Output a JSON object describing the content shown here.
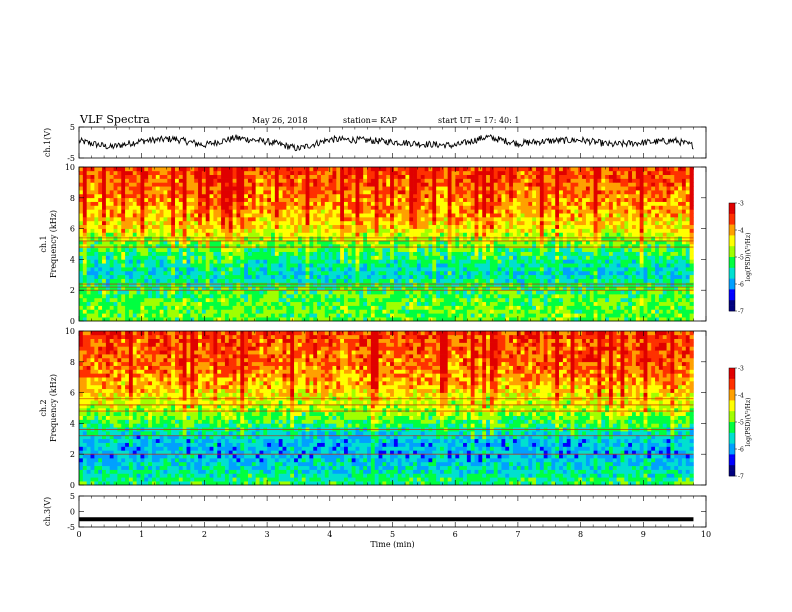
{
  "header": {
    "title": "VLF Spectra",
    "date": "May 26, 2018",
    "station": "station= KAP",
    "start_ut": "start  UT =   17: 40: 1"
  },
  "colors": {
    "scale": [
      "#000080",
      "#0000ff",
      "#00a0ff",
      "#00e0d0",
      "#00ff40",
      "#a0ff00",
      "#ffff00",
      "#ffa000",
      "#ff3000",
      "#e00000"
    ]
  },
  "chart_data": [
    {
      "type": "line",
      "title": "",
      "ylabel": "ch.1(V)",
      "xlabel": "",
      "xlim": [
        0,
        10
      ],
      "ylim": [
        -5,
        5
      ],
      "yticks": [
        "5",
        "-5"
      ],
      "x": [
        0,
        0.5,
        1,
        1.5,
        2,
        2.5,
        3,
        3.5,
        4,
        4.5,
        5,
        5.5,
        6,
        6.5,
        7,
        7.5,
        8,
        8.5,
        9,
        9.5,
        9.8
      ],
      "values": [
        0.5,
        -1.5,
        0.5,
        1.2,
        -0.8,
        1.5,
        0.3,
        -2.0,
        1.0,
        0.8,
        0.2,
        -0.5,
        -1.0,
        1.8,
        -0.3,
        0.5,
        0.8,
        -0.7,
        0.0,
        0.6,
        -1.0
      ],
      "grid": false
    },
    {
      "type": "heatmap",
      "title": "",
      "ylabel": "ch.1 Frequency (kHz)",
      "xlabel": "",
      "xlim": [
        0,
        10
      ],
      "ylim": [
        0,
        10
      ],
      "yticks": [
        "0",
        "2",
        "4",
        "6",
        "8",
        "10"
      ],
      "colorbar": {
        "label": "log(PSD)(V²/Hz)",
        "range": [
          -7,
          -3
        ],
        "ticks": [
          "-3",
          "-4",
          "-5",
          "-6",
          "-7"
        ]
      },
      "bands_khz": [
        2.0,
        2.2,
        2.4,
        4.8,
        5.2,
        5.4
      ],
      "profile_khz": [
        0,
        1,
        2,
        3,
        4,
        5,
        6,
        7,
        8,
        9,
        10
      ],
      "profile_log_psd": [
        -5.0,
        -5.0,
        -5.2,
        -5.7,
        -5.4,
        -5.0,
        -4.4,
        -4.1,
        -3.9,
        -3.7,
        -3.6
      ]
    },
    {
      "type": "heatmap",
      "title": "",
      "ylabel": "ch.2 Frequency (kHz)",
      "xlabel": "",
      "xlim": [
        0,
        10
      ],
      "ylim": [
        0,
        10
      ],
      "yticks": [
        "0",
        "2",
        "4",
        "6",
        "8",
        "10"
      ],
      "colorbar": {
        "label": "log(PSD)(V²/Hz)",
        "range": [
          -7,
          -3
        ],
        "ticks": [
          "-3",
          "-4",
          "-5",
          "-6",
          "-7"
        ]
      },
      "bands_khz": [
        2.0,
        3.2,
        3.6,
        4.8,
        5.2,
        5.6
      ],
      "profile_khz": [
        0,
        1,
        2,
        3,
        4,
        5,
        6,
        7,
        8,
        9,
        10
      ],
      "profile_log_psd": [
        -5.2,
        -5.6,
        -5.9,
        -5.8,
        -5.2,
        -4.7,
        -4.3,
        -4.0,
        -3.8,
        -3.7,
        -3.6
      ]
    },
    {
      "type": "line",
      "title": "",
      "ylabel": "ch.3(V)",
      "xlabel": "Time  (min)",
      "xlim": [
        0,
        10
      ],
      "ylim": [
        -5,
        5
      ],
      "yticks": [
        "5",
        "0",
        "-5"
      ],
      "xticks": [
        "0",
        "1",
        "2",
        "3",
        "4",
        "5",
        "6",
        "7",
        "8",
        "9",
        "10"
      ],
      "x": [
        0,
        9.8
      ],
      "values": [
        -2.5,
        -2.5
      ],
      "grid": false
    }
  ]
}
